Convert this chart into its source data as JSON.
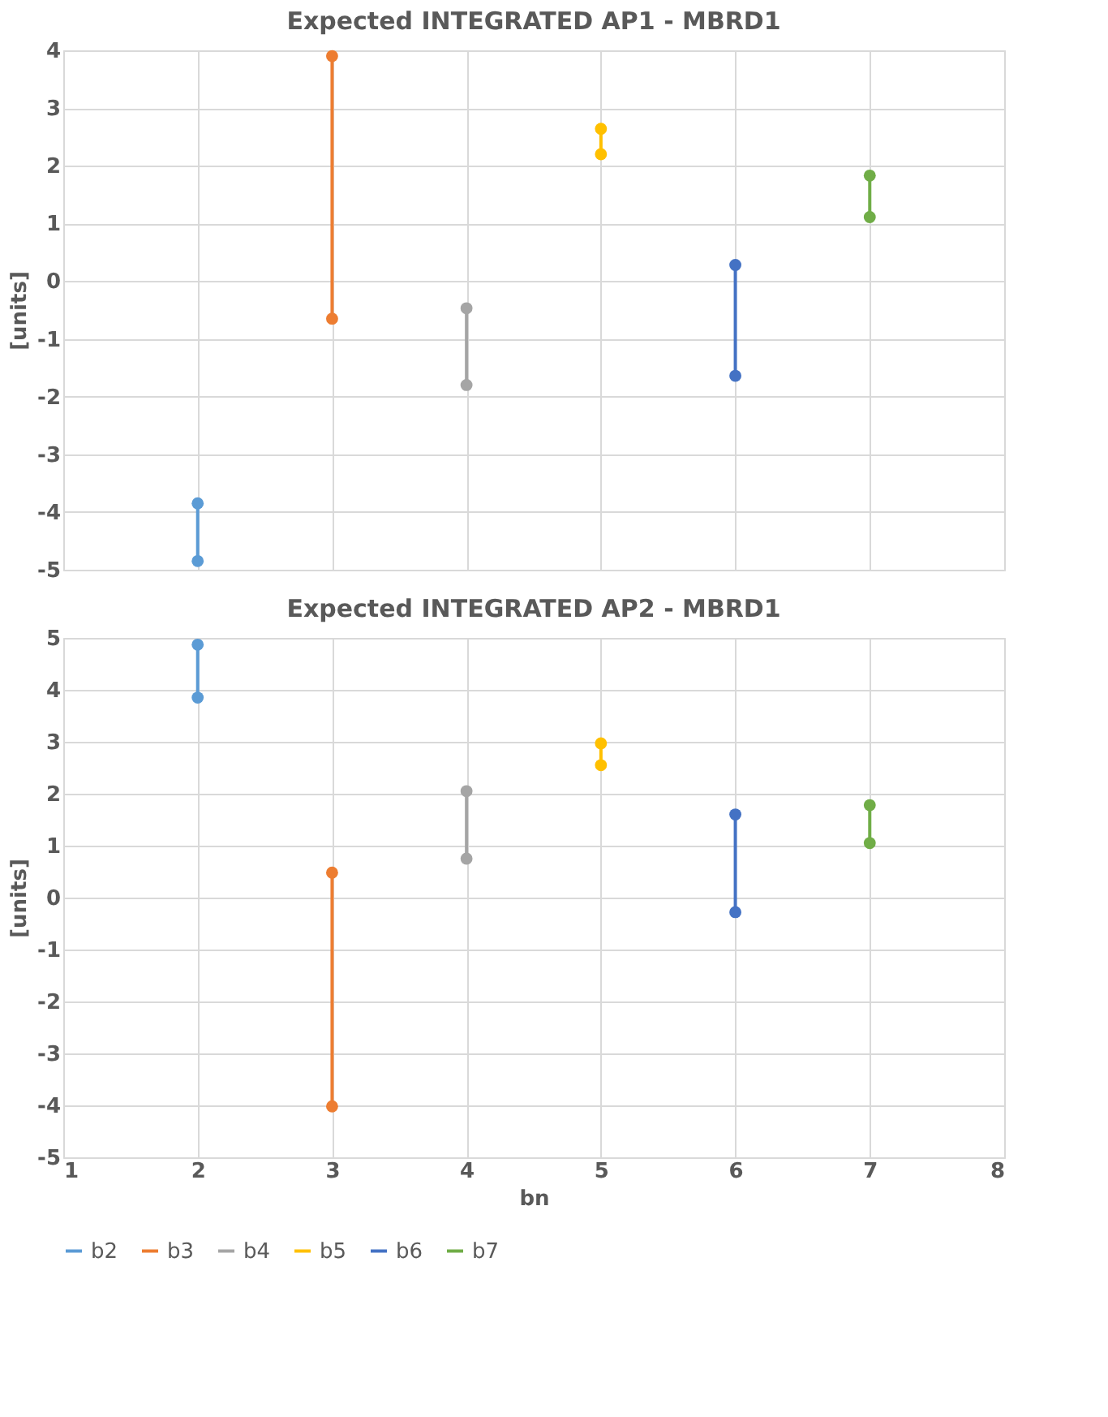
{
  "chart_data": [
    {
      "type": "line",
      "title": "Expected INTEGRATED AP1 - MBRD1",
      "ylabel": "[units]",
      "xlim": [
        1,
        8
      ],
      "xticks": [
        1,
        2,
        3,
        4,
        5,
        6,
        7,
        8
      ],
      "ylim": [
        -5,
        4
      ],
      "yticks": [
        -5,
        -4,
        -3,
        -2,
        -1,
        0,
        1,
        2,
        3,
        4
      ],
      "grid": true,
      "legend": "bottom",
      "tick_labels": "y",
      "marker": "circle",
      "line_style": "solid",
      "series": [
        {
          "name": "b2",
          "color": "#5b9bd5",
          "x": [
            2,
            2
          ],
          "values": [
            -3.85,
            -4.85
          ]
        },
        {
          "name": "b3",
          "color": "#ed7d31",
          "x": [
            3,
            3
          ],
          "values": [
            3.9,
            -0.65
          ]
        },
        {
          "name": "b4",
          "color": "#a5a5a5",
          "x": [
            4,
            4
          ],
          "values": [
            -0.47,
            -1.8
          ]
        },
        {
          "name": "b5",
          "color": "#ffc000",
          "x": [
            5,
            5
          ],
          "values": [
            2.64,
            2.2
          ]
        },
        {
          "name": "b6",
          "color": "#4472c4",
          "x": [
            6,
            6
          ],
          "values": [
            0.28,
            -1.64
          ]
        },
        {
          "name": "b7",
          "color": "#70ad47",
          "x": [
            7,
            7
          ],
          "values": [
            1.83,
            1.11
          ]
        }
      ]
    },
    {
      "type": "line",
      "title": "Expected INTEGRATED AP2 - MBRD1",
      "xlabel": "bn",
      "ylabel": "[units]",
      "xlim": [
        1,
        8
      ],
      "xticks": [
        1,
        2,
        3,
        4,
        5,
        6,
        7,
        8
      ],
      "ylim": [
        -5,
        5
      ],
      "yticks": [
        -5,
        -4,
        -3,
        -2,
        -1,
        0,
        1,
        2,
        3,
        4,
        5
      ],
      "grid": true,
      "legend": "bottom",
      "marker": "circle",
      "line_style": "solid",
      "series": [
        {
          "name": "b2",
          "color": "#5b9bd5",
          "x": [
            2,
            2
          ],
          "values": [
            4.87,
            3.85
          ]
        },
        {
          "name": "b3",
          "color": "#ed7d31",
          "x": [
            3,
            3
          ],
          "values": [
            0.48,
            -4.02
          ]
        },
        {
          "name": "b4",
          "color": "#a5a5a5",
          "x": [
            4,
            4
          ],
          "values": [
            2.05,
            0.75
          ]
        },
        {
          "name": "b5",
          "color": "#ffc000",
          "x": [
            5,
            5
          ],
          "values": [
            2.97,
            2.55
          ]
        },
        {
          "name": "b6",
          "color": "#4472c4",
          "x": [
            6,
            6
          ],
          "values": [
            1.6,
            -0.28
          ]
        },
        {
          "name": "b7",
          "color": "#70ad47",
          "x": [
            7,
            7
          ],
          "values": [
            1.78,
            1.05
          ]
        }
      ]
    }
  ]
}
